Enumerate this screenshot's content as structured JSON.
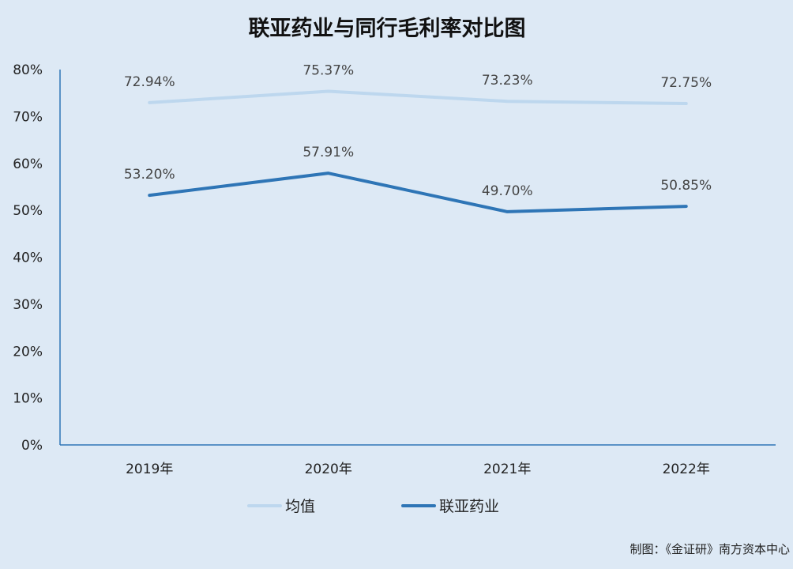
{
  "chart_data": {
    "type": "line",
    "title": "联亚药业与同行毛利率对比图",
    "categories": [
      "2019年",
      "2020年",
      "2021年",
      "2022年"
    ],
    "yticks": [
      "0%",
      "10%",
      "20%",
      "30%",
      "40%",
      "50%",
      "60%",
      "70%",
      "80%"
    ],
    "ylim": [
      0,
      80
    ],
    "grid": false,
    "legend_position": "bottom",
    "series": [
      {
        "name": "均值",
        "color": "#bdd7ee",
        "values": [
          72.94,
          75.37,
          73.23,
          72.75
        ],
        "labels": [
          "72.94%",
          "75.37%",
          "73.23%",
          "72.75%"
        ]
      },
      {
        "name": "联亚药业",
        "color": "#2e75b6",
        "values": [
          53.2,
          57.91,
          49.7,
          50.85
        ],
        "labels": [
          "53.20%",
          "57.91%",
          "49.70%",
          "50.85%"
        ]
      }
    ]
  },
  "footer": {
    "source": "制图：《金证研》南方资本中心"
  }
}
